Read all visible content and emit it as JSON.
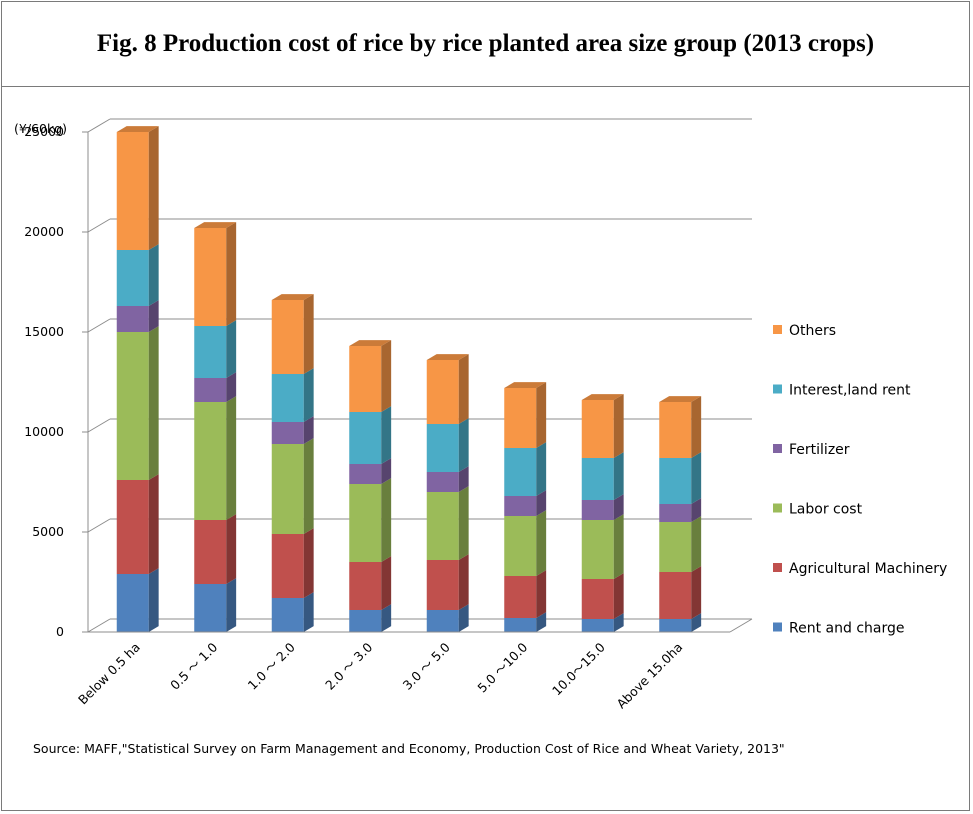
{
  "title": "Fig. 8 Production cost of rice by rice planted area size group (2013 crops)",
  "source": "Source: MAFF,\"Statistical Survey on Farm Management and Economy, Production Cost of Rice and Wheat Variety, 2013\"",
  "chart_data": {
    "type": "bar",
    "stacked": true,
    "three_d": true,
    "ylabel": "(¥/60kg)",
    "ylim": [
      0,
      25000
    ],
    "yticks": [
      0,
      5000,
      10000,
      15000,
      20000,
      25000
    ],
    "grid": true,
    "legend_position": "right",
    "categories": [
      "Below 0.5 ha",
      "0.5 ～ 1.0",
      "1.0 ～ 2.0",
      "2.0 ～ 3.0",
      "3.0 ～ 5.0",
      "5.0 ～10.0",
      "10.0～15.0",
      "Above 15.0ha"
    ],
    "series": [
      {
        "name": "Rent and charge",
        "color": "#4f81bd",
        "values": [
          2900,
          2400,
          1700,
          1100,
          1100,
          700,
          650,
          650
        ]
      },
      {
        "name": "Agricultural Machinery",
        "color": "#c0504d",
        "values": [
          4700,
          3200,
          3200,
          2400,
          2500,
          2100,
          2000,
          2350
        ]
      },
      {
        "name": "Labor cost",
        "color": "#9bbb59",
        "values": [
          7400,
          5900,
          4500,
          3900,
          3400,
          3000,
          2950,
          2500
        ]
      },
      {
        "name": "Fertilizer",
        "color": "#8064a2",
        "values": [
          1300,
          1200,
          1100,
          1000,
          1000,
          1000,
          1000,
          900
        ]
      },
      {
        "name": "Interest,land rent",
        "color": "#4bacc6",
        "values": [
          2800,
          2600,
          2400,
          2600,
          2400,
          2400,
          2100,
          2300
        ]
      },
      {
        "name": "Others",
        "color": "#f79646",
        "values": [
          5900,
          4900,
          3700,
          3300,
          3200,
          3000,
          2900,
          2800
        ]
      }
    ]
  }
}
